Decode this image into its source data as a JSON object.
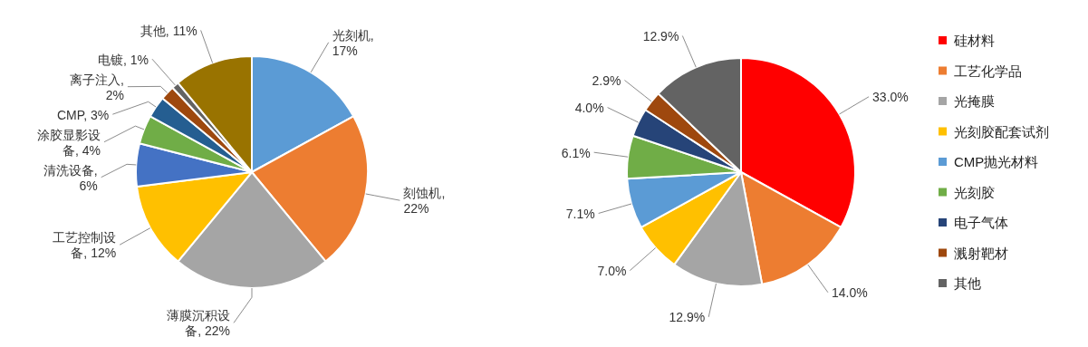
{
  "chart_data": [
    {
      "type": "pie",
      "values": [
        17,
        22,
        22,
        12,
        6,
        4,
        3,
        2,
        1,
        11
      ],
      "value_labels": [
        "光刻机, 17%",
        "刻蚀机, 22%",
        "薄膜沉积设备, 22%",
        "工艺控制设备, 12%",
        "清洗设备, 6%",
        "涂胶显影设备, 4%",
        "CMP, 3%",
        "离子注入, 2%",
        "电镀, 1%",
        "其他, 11%"
      ],
      "colors": [
        "#5b9bd5",
        "#ed7d31",
        "#a5a5a5",
        "#ffc000",
        "#4472c4",
        "#70ad47",
        "#255e91",
        "#9e480e",
        "#636363",
        "#997300"
      ]
    },
    {
      "type": "pie",
      "categories": [
        "硅材料",
        "工艺化学品",
        "光掩膜",
        "光刻胶配套试剂",
        "CMP抛光材料",
        "光刻胶",
        "电子气体",
        "溅射靶材",
        "其他"
      ],
      "values": [
        33.0,
        14.0,
        12.9,
        7.0,
        7.1,
        6.1,
        4.0,
        2.9,
        12.9
      ],
      "value_labels": [
        "33.0%",
        "14.0%",
        "12.9%",
        "7.0%",
        "7.1%",
        "6.1%",
        "4.0%",
        "2.9%",
        "12.9%"
      ],
      "colors": [
        "#ff0000",
        "#ed7d31",
        "#a5a5a5",
        "#ffc000",
        "#5b9bd5",
        "#70ad47",
        "#264478",
        "#9e480e",
        "#636363"
      ],
      "legend": "right"
    }
  ]
}
